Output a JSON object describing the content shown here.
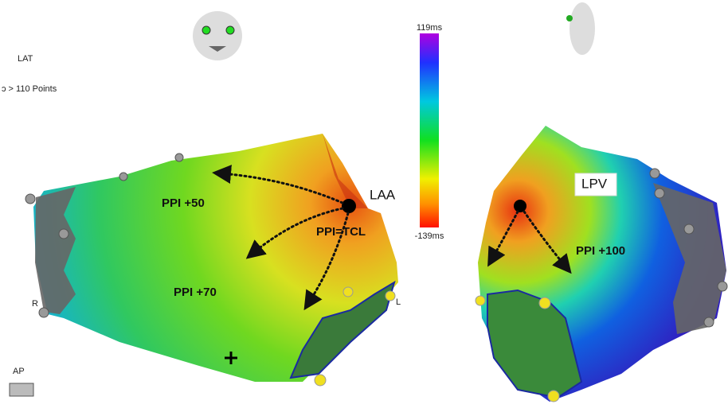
{
  "labels": {
    "lat": "LAT",
    "points": "ɔ > 110 Points",
    "view": "AP",
    "right_marker": "R",
    "left_marker": "L"
  },
  "colorbar": {
    "max_label": "119ms",
    "min_label": "-139ms"
  },
  "left_map": {
    "laa": "LAA",
    "ppi_50": "PPI +50",
    "ppi_tcl": "PPI=TCL",
    "ppi_70": "PPI +70"
  },
  "right_map": {
    "lpv": "LPV",
    "ppi_100": "PPI +100"
  }
}
